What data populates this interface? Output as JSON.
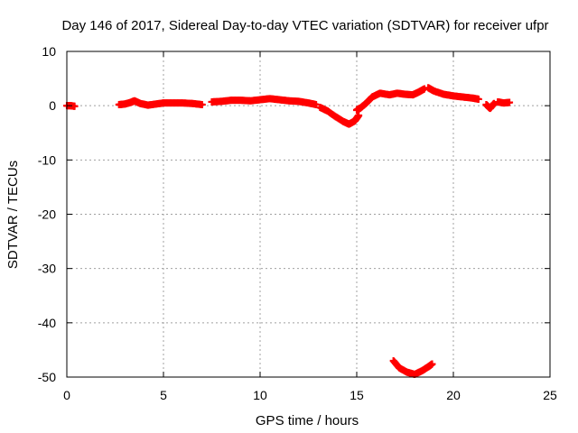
{
  "chart_data": {
    "type": "scatter",
    "title": "Day 146 of 2017, Sidereal Day-to-day VTEC variation (SDTVAR) for receiver ufpr",
    "xlabel": "GPS time / hours",
    "ylabel": "SDTVAR / TECUs",
    "xlim": [
      0,
      25
    ],
    "ylim": [
      -50,
      10
    ],
    "xticks": [
      0,
      5,
      10,
      15,
      20,
      25
    ],
    "yticks": [
      10,
      0,
      -10,
      -20,
      -30,
      -40,
      -50
    ],
    "grid": true,
    "marker_color": "#ff0000",
    "grid_color": "#a0a0a0",
    "series": [
      {
        "name": "SDTVAR",
        "segments": [
          [
            [
              0.0,
              0.0
            ],
            [
              0.2,
              0.0
            ],
            [
              0.4,
              -0.1
            ]
          ],
          [
            [
              2.7,
              0.2
            ],
            [
              3.0,
              0.3
            ],
            [
              3.3,
              0.6
            ],
            [
              3.5,
              0.9
            ],
            [
              3.8,
              0.4
            ],
            [
              4.2,
              0.1
            ],
            [
              4.6,
              0.3
            ],
            [
              5.0,
              0.5
            ],
            [
              5.5,
              0.5
            ],
            [
              6.0,
              0.5
            ],
            [
              6.5,
              0.4
            ],
            [
              7.0,
              0.2
            ]
          ],
          [
            [
              7.5,
              0.7
            ],
            [
              8.0,
              0.8
            ],
            [
              8.5,
              1.0
            ],
            [
              9.0,
              1.0
            ],
            [
              9.5,
              0.9
            ],
            [
              10.0,
              1.1
            ],
            [
              10.5,
              1.3
            ],
            [
              11.0,
              1.1
            ],
            [
              11.5,
              0.9
            ],
            [
              12.0,
              0.8
            ],
            [
              12.5,
              0.5
            ],
            [
              12.9,
              0.2
            ]
          ],
          [
            [
              13.1,
              -0.3
            ],
            [
              13.5,
              -1.0
            ],
            [
              13.9,
              -2.0
            ],
            [
              14.3,
              -2.9
            ],
            [
              14.6,
              -3.4
            ],
            [
              14.9,
              -2.8
            ],
            [
              15.1,
              -1.8
            ]
          ],
          [
            [
              15.0,
              -0.8
            ],
            [
              15.2,
              -0.4
            ],
            [
              15.5,
              0.5
            ],
            [
              15.8,
              1.6
            ],
            [
              16.2,
              2.3
            ],
            [
              16.7,
              2.0
            ],
            [
              17.1,
              2.3
            ],
            [
              17.5,
              2.1
            ],
            [
              17.9,
              2.0
            ],
            [
              18.2,
              2.5
            ],
            [
              18.5,
              3.1
            ]
          ],
          [
            [
              18.7,
              3.3
            ],
            [
              19.0,
              2.7
            ],
            [
              19.5,
              2.1
            ],
            [
              20.0,
              1.8
            ],
            [
              20.5,
              1.6
            ],
            [
              21.0,
              1.4
            ],
            [
              21.3,
              1.2
            ]
          ],
          [
            [
              21.7,
              0.2
            ],
            [
              21.9,
              -0.5
            ],
            [
              22.1,
              0.4
            ]
          ],
          [
            [
              22.3,
              0.7
            ],
            [
              22.6,
              0.5
            ],
            [
              22.9,
              0.6
            ]
          ],
          [
            [
              16.9,
              -47.0
            ],
            [
              17.2,
              -48.3
            ],
            [
              17.6,
              -49.1
            ],
            [
              18.0,
              -49.5
            ],
            [
              18.4,
              -48.8
            ],
            [
              18.7,
              -48.1
            ],
            [
              18.9,
              -47.6
            ]
          ]
        ]
      }
    ]
  }
}
